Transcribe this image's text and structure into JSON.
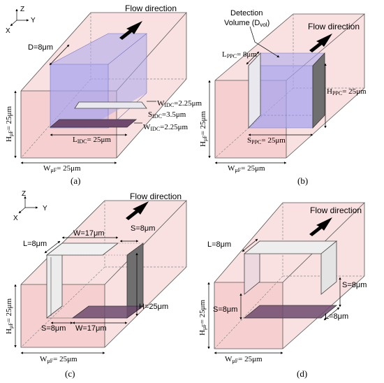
{
  "axes": {
    "z": "Z",
    "y": "Y",
    "x": "X"
  },
  "colors": {
    "channel_fill": "#f4c9c9",
    "channel_stroke": "#c98f8f",
    "detection_fill": "#a9a7ee",
    "electrode_dark": "#6f4a6e",
    "electrode_light": "#e8e8ee",
    "electrode_side_dark": "#707070"
  },
  "panels": {
    "a": {
      "caption": "(a)",
      "flow": "Flow direction",
      "d": "D=8μm",
      "w_top_main": "W",
      "w_top_sub": "IDC",
      "w_top_val": "=2.25μm",
      "s_main": "S",
      "s_sub": "IDC",
      "s_val": "=3.5μm",
      "w_bot_main": "W",
      "w_bot_sub": "IDC",
      "w_bot_val": "=2.25μm",
      "l_main": "L",
      "l_sub": "IDC",
      "l_val": "= 25μm",
      "h_main": "H",
      "h_sub": "μF",
      "h_val": "= 25μm",
      "wf_main": "W",
      "wf_sub": "μF",
      "wf_val": "= 25μm"
    },
    "b": {
      "caption": "(b)",
      "flow": "Flow direction",
      "detection_line1": "Detection",
      "detection_line2_a": "Volume (D",
      "detection_line2_sub": "vol",
      "detection_line2_b": ")",
      "l_main": "L",
      "l_sub": "PPC",
      "l_val": "= 8μm",
      "hp_main": "H",
      "hp_sub": "PPC",
      "hp_val": "= 25μm",
      "s_main": "S",
      "s_sub": "PPC",
      "s_val": "= 25μm",
      "h_main": "H",
      "h_sub": "μF",
      "h_val": "= 25μm",
      "wf_main": "W",
      "wf_sub": "μF",
      "wf_val": "= 25μm"
    },
    "c": {
      "caption": "(c)",
      "flow": "Flow direction",
      "w_top": "W=17μm",
      "s_top": "S=8μm",
      "l": "L=8μm",
      "h_right": "H=25μm",
      "s_bot": "S=8μm",
      "w_bot": "W=17μm",
      "h_main": "H",
      "h_sub": "μF",
      "h_val": "= 25μm",
      "wf_main": "W",
      "wf_sub": "μF",
      "wf_val": "= 25μm"
    },
    "d": {
      "caption": "(d)",
      "flow": "Flow direction",
      "l_top": "L=8μm",
      "s_right": "S=8μm",
      "s_left": "S=8μm",
      "l_bot": "L=8μm",
      "h_main": "H",
      "h_sub": "μF",
      "h_val": "= 25μm",
      "wf_main": "W",
      "wf_sub": "μF",
      "wf_val": "= 25μm"
    }
  }
}
